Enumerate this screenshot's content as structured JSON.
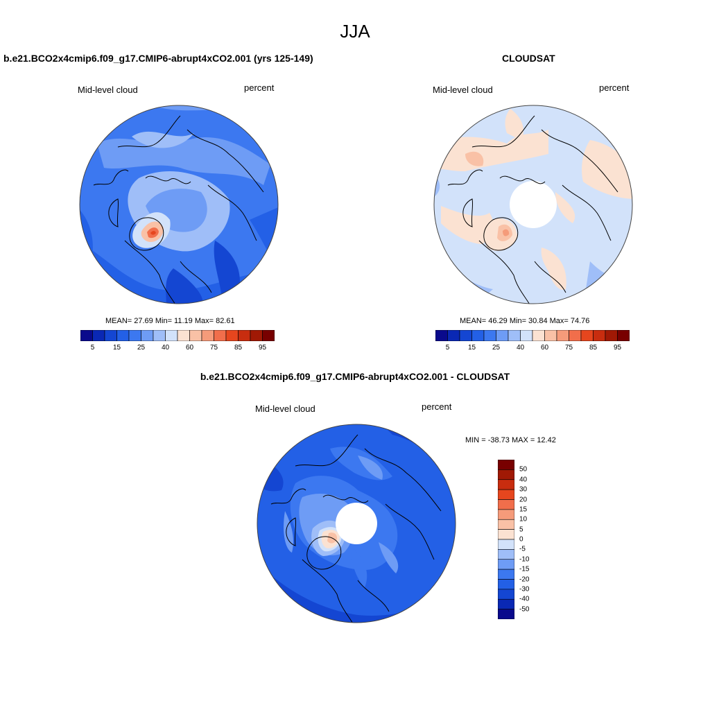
{
  "figure": {
    "title": "JJA"
  },
  "panels": [
    {
      "title": "b.e21.BCO2x4cmip6.f09_g17.CMIP6-abrupt4xCO2.001 (yrs 125-149)",
      "variable": "Mid-level cloud",
      "units": "percent",
      "stats": "MEAN=  27.69  Min=  11.19  Max=  82.61",
      "colorbar_labels": [
        "5",
        "15",
        "25",
        "40",
        "60",
        "75",
        "85",
        "95"
      ]
    },
    {
      "title": "CLOUDSAT",
      "variable": "Mid-level cloud",
      "units": "percent",
      "stats": "MEAN=  46.29  Min=  30.84  Max=  74.76",
      "colorbar_labels": [
        "5",
        "15",
        "25",
        "40",
        "60",
        "75",
        "85",
        "95"
      ]
    },
    {
      "title": "b.e21.BCO2x4cmip6.f09_g17.CMIP6-abrupt4xCO2.001 - CLOUDSAT",
      "variable": "Mid-level cloud",
      "units": "percent",
      "stats": "MIN = -38.73 MAX =  12.42",
      "colorbar_labels": [
        "50",
        "40",
        "30",
        "20",
        "15",
        "10",
        "5",
        "0",
        "-5",
        "-10",
        "-15",
        "-20",
        "-30",
        "-40",
        "-50"
      ]
    }
  ],
  "palettes": {
    "abs": [
      "#0a0a8c",
      "#0a28b4",
      "#1446d2",
      "#2360e6",
      "#3c78f0",
      "#6e9cf5",
      "#9fbef8",
      "#d2e2fa",
      "#fbe2d2",
      "#f9c1a6",
      "#f59b7a",
      "#f16e4b",
      "#e6461e",
      "#c82d0f",
      "#a01905",
      "#780000"
    ],
    "diff": [
      "#780000",
      "#a01905",
      "#c82d0f",
      "#e6461e",
      "#f16e4b",
      "#f59b7a",
      "#f9c1a6",
      "#fbe2d2",
      "#d2e2fa",
      "#9fbef8",
      "#6e9cf5",
      "#3c78f0",
      "#2360e6",
      "#1446d2",
      "#0a28b4",
      "#0a0a8c"
    ]
  }
}
